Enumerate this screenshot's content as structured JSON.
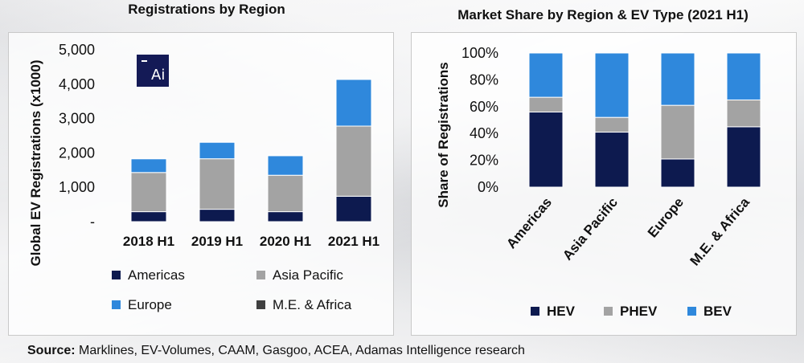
{
  "colors": {
    "americas": "#0d1a4f",
    "asia_pacific": "#a3a3a3",
    "europe": "#2f88dc",
    "me_africa": "#404040",
    "hev": "#0d1a4f",
    "phev": "#a3a3a3",
    "bev": "#2f88dc"
  },
  "logo": {
    "text": "Ai",
    "icon": "adamas-logo-icon"
  },
  "source": {
    "label": "Source:",
    "text": " Marklines, EV-Volumes, CAAM, Gasgoo, ACEA, Adamas Intelligence research"
  },
  "chart_data": [
    {
      "type": "bar",
      "stacked": true,
      "title": "Registrations by Region",
      "xlabel": "",
      "ylabel": "Global EV Registrations (x1000)",
      "categories": [
        "2018 H1",
        "2019 H1",
        "2020 H1",
        "2021 H1"
      ],
      "ylim": [
        0,
        5000
      ],
      "yticks": [
        0,
        1000,
        2000,
        3000,
        4000,
        5000
      ],
      "ytick_labels": [
        "-",
        "1,000",
        "2,000",
        "3,000",
        "4,000",
        "5,000"
      ],
      "series": [
        {
          "name": "Americas",
          "color_key": "americas",
          "values": [
            290,
            360,
            290,
            740
          ]
        },
        {
          "name": "Asia Pacific",
          "color_key": "asia_pacific",
          "values": [
            1140,
            1470,
            1060,
            2040
          ]
        },
        {
          "name": "Europe",
          "color_key": "europe",
          "values": [
            400,
            480,
            570,
            1360
          ]
        },
        {
          "name": "M.E. & Africa",
          "color_key": "me_africa",
          "values": [
            10,
            10,
            10,
            10
          ]
        }
      ],
      "legend": [
        "Americas",
        "Asia Pacific",
        "Europe",
        "M.E. & Africa"
      ],
      "legend_position": "bottom"
    },
    {
      "type": "bar",
      "stacked": true,
      "percent": true,
      "title": "Market Share by Region & EV Type (2021 H1)",
      "xlabel": "",
      "ylabel": "Share of Registrations",
      "categories": [
        "Americas",
        "Asia Pacific",
        "Europe",
        "M.E. & Africa"
      ],
      "ylim": [
        0,
        100
      ],
      "yticks": [
        0,
        20,
        40,
        60,
        80,
        100
      ],
      "ytick_labels": [
        "0%",
        "20%",
        "40%",
        "60%",
        "80%",
        "100%"
      ],
      "series": [
        {
          "name": "HEV",
          "color_key": "hev",
          "values": [
            56,
            41,
            21,
            45
          ]
        },
        {
          "name": "PHEV",
          "color_key": "phev",
          "values": [
            11,
            11,
            40,
            20
          ]
        },
        {
          "name": "BEV",
          "color_key": "bev",
          "values": [
            33,
            48,
            39,
            35
          ]
        }
      ],
      "legend": [
        "HEV",
        "PHEV",
        "BEV"
      ],
      "legend_position": "bottom"
    }
  ]
}
